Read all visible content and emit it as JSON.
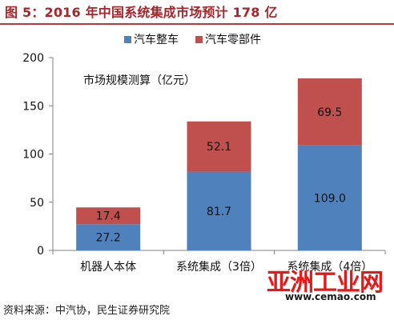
{
  "header": {
    "title": "图 5：2016 年中国系统集成市场预计 178 亿"
  },
  "footer": {
    "source": "资料来源：中汽协，民生证券研究院"
  },
  "watermark": {
    "logo_text": "亚洲工业网",
    "url": "www.cemao.com"
  },
  "chart_data": {
    "type": "bar",
    "stacked": true,
    "title": "",
    "annotation": "市场规模测算（亿元）",
    "categories": [
      "机器人本体",
      "系统集成（3倍）",
      "系统集成（4倍）"
    ],
    "series": [
      {
        "name": "汽车整车",
        "color": "#4f81bd",
        "values": [
          27.2,
          81.7,
          109.0
        ],
        "labels": [
          "27.2",
          "81.7",
          "109.0"
        ]
      },
      {
        "name": "汽车零部件",
        "color": "#c0504d",
        "values": [
          17.4,
          52.1,
          69.5
        ],
        "labels": [
          "17.4",
          "52.1",
          "69.5"
        ]
      }
    ],
    "ylim": [
      0,
      200
    ],
    "yticks": [
      "0",
      "50",
      "100",
      "150",
      "200"
    ],
    "xlabel": "",
    "ylabel": "",
    "grid": false,
    "legend_position": "top"
  }
}
